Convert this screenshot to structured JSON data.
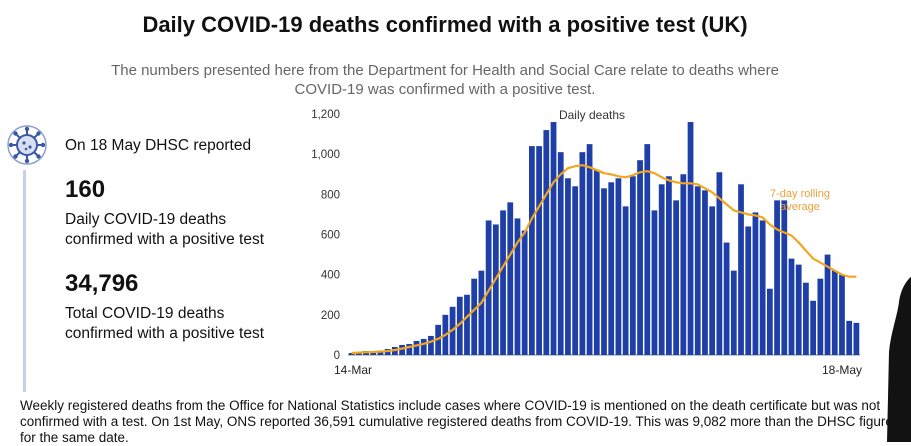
{
  "header": {
    "title": "Daily COVID-19 deaths confirmed with a positive test (UK)",
    "subtitle": "The numbers presented here from the Department for Health and Social Care relate to deaths where COVID-19 was confirmed with a positive test."
  },
  "stats": {
    "icon": "coronavirus-icon",
    "reported_line": "On 18 May DHSC reported",
    "daily_value": "160",
    "daily_caption": "Daily COVID-19 deaths confirmed with a positive test",
    "total_value": "34,796",
    "total_caption": "Total COVID-19 deaths confirmed with a positive test"
  },
  "footnote": "Weekly registered deaths from the Office for National Statistics include cases where COVID-19 is mentioned on the death certificate but was not confirmed with a test. On 1st May, ONS reported 36,591 cumulative registered deaths from COVID-19. This was 9,082 more than the DHSC figure for the same date.",
  "colors": {
    "bars": "#1f3fa8",
    "rolling": "#f2a51e",
    "annotation": "#e8a23a"
  },
  "chart_data": {
    "type": "bar",
    "ylim": [
      0,
      1200
    ],
    "yticks": [
      0,
      200,
      400,
      600,
      800,
      "1,000",
      "1,200"
    ],
    "xlabels": [
      "14-Mar",
      "18-May"
    ],
    "grid": false,
    "series": [
      {
        "name": "Daily deaths",
        "values": [
          10,
          15,
          20,
          18,
          22,
          30,
          40,
          50,
          55,
          70,
          80,
          95,
          150,
          200,
          240,
          290,
          300,
          380,
          420,
          670,
          650,
          720,
          760,
          680,
          620,
          1040,
          1040,
          1120,
          1160,
          1010,
          880,
          840,
          1010,
          1050,
          920,
          830,
          860,
          880,
          740,
          890,
          970,
          1050,
          720,
          850,
          890,
          770,
          900,
          1160,
          840,
          820,
          740,
          910,
          560,
          420,
          850,
          640,
          710,
          670,
          330,
          770,
          770,
          480,
          450,
          360,
          270,
          380,
          500,
          420,
          400,
          170,
          160
        ]
      },
      {
        "name": "7-day rolling average",
        "values": [
          10,
          12,
          14,
          15,
          17,
          20,
          25,
          32,
          40,
          48,
          56,
          66,
          80,
          100,
          125,
          155,
          190,
          225,
          260,
          320,
          380,
          440,
          500,
          560,
          610,
          680,
          740,
          800,
          860,
          900,
          930,
          940,
          945,
          935,
          920,
          905,
          900,
          890,
          885,
          895,
          910,
          915,
          905,
          885,
          870,
          860,
          855,
          855,
          850,
          830,
          810,
          780,
          750,
          720,
          710,
          700,
          695,
          685,
          650,
          625,
          610,
          595,
          560,
          520,
          480,
          460,
          440,
          420,
          400,
          390,
          390
        ]
      }
    ],
    "annotations": {
      "daily": "Daily deaths",
      "rolling": "7-day rolling average"
    }
  }
}
